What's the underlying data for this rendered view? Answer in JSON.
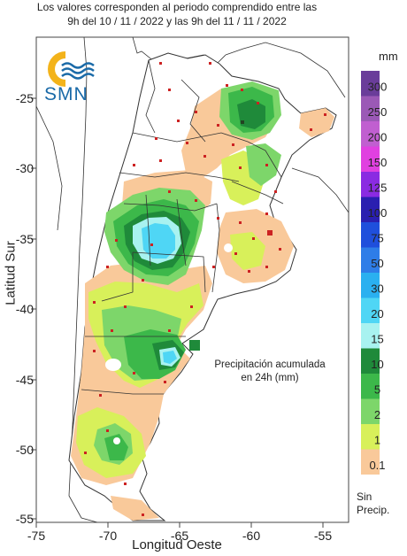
{
  "header": {
    "line1": "Los valores corresponden al periodo comprendido entre las",
    "line2": "9h del 10 / 11 / 2022  y las 9h del 11 / 11 / 2022"
  },
  "logo": {
    "text": "SMN",
    "icon": "smn-sun-waves-icon"
  },
  "axes": {
    "ylabel": "Latitud Sur",
    "xlabel": "Longitud Oeste",
    "xticks": [
      "-75",
      "-70",
      "-65",
      "-60",
      "-55"
    ],
    "yticks": [
      "-25",
      "-30",
      "-35",
      "-40",
      "-45",
      "-50",
      "-55"
    ]
  },
  "legend": {
    "unit": "mm",
    "classes": [
      {
        "label": "300",
        "color": "#6a3d9a"
      },
      {
        "label": "250",
        "color": "#9b59b6"
      },
      {
        "label": "200",
        "color": "#c05fd0"
      },
      {
        "label": "150",
        "color": "#e040e0"
      },
      {
        "label": "125",
        "color": "#8a2be2"
      },
      {
        "label": "100",
        "color": "#2a1fb0"
      },
      {
        "label": "75",
        "color": "#1f4fdc"
      },
      {
        "label": "50",
        "color": "#2e7de8"
      },
      {
        "label": "30",
        "color": "#2ab0f0"
      },
      {
        "label": "20",
        "color": "#4fd6f5"
      },
      {
        "label": "15",
        "color": "#a8f2f0"
      },
      {
        "label": "10",
        "color": "#1f8a3a"
      },
      {
        "label": "5",
        "color": "#3cb84a"
      },
      {
        "label": "2",
        "color": "#7dd66a"
      },
      {
        "label": "1",
        "color": "#d8f05a"
      },
      {
        "label": "0.1",
        "color": "#f9c99a"
      }
    ],
    "none_label_line1": "Sin",
    "none_label_line2": "Precip."
  },
  "note": {
    "line1": "Precipitación acumulada",
    "line2": "en 24h (mm)"
  }
}
